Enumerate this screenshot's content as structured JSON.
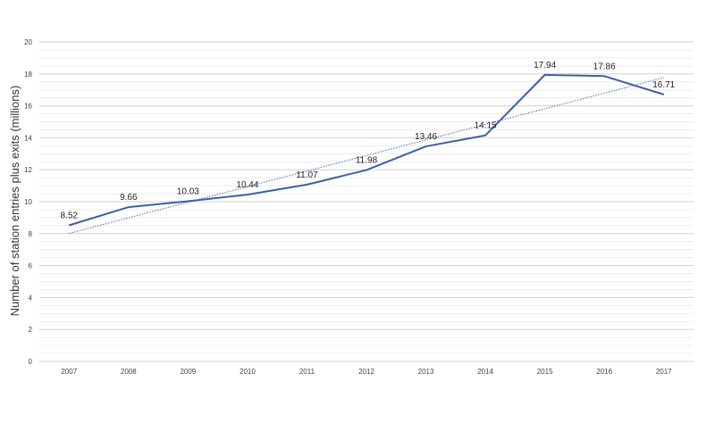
{
  "chart_data": {
    "type": "line",
    "title": "",
    "xlabel": "",
    "ylabel": "Number of station entries plus exits (millions)",
    "categories": [
      "2007",
      "2008",
      "2009",
      "2010",
      "2011",
      "2012",
      "2013",
      "2014",
      "2015",
      "2016",
      "2017"
    ],
    "series": [
      {
        "values": [
          8.52,
          9.66,
          10.03,
          10.44,
          11.07,
          11.98,
          13.46,
          14.15,
          17.94,
          17.86,
          16.71
        ],
        "color": "#3a62a3"
      }
    ],
    "data_labels": [
      "8.52",
      "9.66",
      "10.03",
      "10.44",
      "11.07",
      "11.98",
      "13.46",
      "14.15",
      "17.94",
      "17.86",
      "16.71"
    ],
    "trendline": {
      "style": "dotted",
      "type": "linear",
      "color": "#4a6fb5"
    },
    "ylim": [
      0,
      20
    ],
    "yticks": [
      "0",
      "2",
      "4",
      "6",
      "8",
      "10",
      "12",
      "14",
      "16",
      "18",
      "20"
    ],
    "grid": true,
    "legend": "none"
  }
}
